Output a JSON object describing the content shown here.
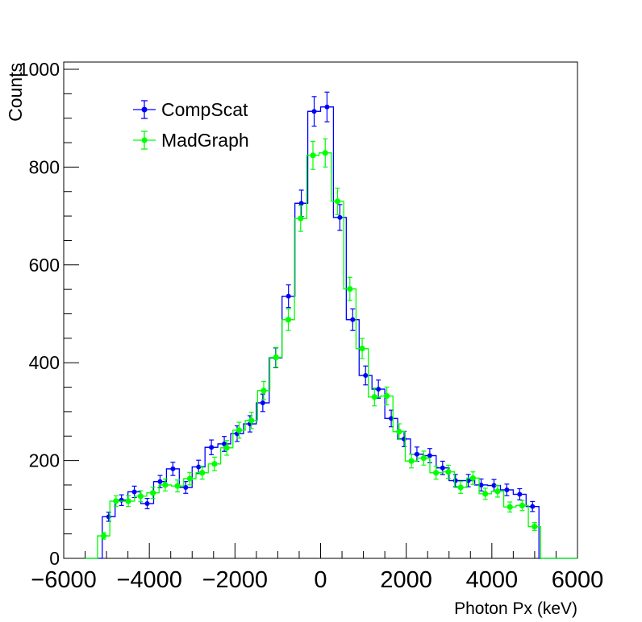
{
  "chart_data": {
    "type": "histogram",
    "title": "",
    "xlabel": "Photon Px (keV)",
    "ylabel": "Counts",
    "xlim": [
      -6000,
      6000
    ],
    "ylim": [
      0,
      1000
    ],
    "x_ticks": [
      -6000,
      -4000,
      -2000,
      0,
      2000,
      4000,
      6000
    ],
    "x_tick_labels": [
      "−6000",
      "−4000",
      "−2000",
      "0",
      "2000",
      "4000",
      "6000"
    ],
    "y_ticks": [
      0,
      200,
      400,
      600,
      800,
      1000
    ],
    "y_tick_labels": [
      "0",
      "200",
      "400",
      "600",
      "800",
      "1000"
    ],
    "grid": false,
    "legend_position": "top-left",
    "series": [
      {
        "name": "CompScat",
        "color": "#0000ff",
        "bin_range": [
          -5100,
          5100
        ],
        "values": [
          85,
          119,
          136,
          112,
          157,
          183,
          145,
          187,
          227,
          234,
          255,
          275,
          318,
          410,
          536,
          726,
          914,
          923,
          697,
          488,
          374,
          346,
          286,
          244,
          213,
          210,
          185,
          159,
          159,
          150,
          149,
          140,
          131,
          106
        ]
      },
      {
        "name": "MadGraph",
        "color": "#00ff00",
        "bin_range": [
          -5210,
          5140
        ],
        "values": [
          46,
          117,
          117,
          127,
          134,
          150,
          148,
          163,
          175,
          193,
          226,
          262,
          282,
          343,
          411,
          488,
          695,
          824,
          829,
          730,
          551,
          429,
          330,
          332,
          259,
          199,
          205,
          175,
          177,
          145,
          164,
          132,
          137,
          105,
          108,
          65
        ]
      }
    ]
  }
}
